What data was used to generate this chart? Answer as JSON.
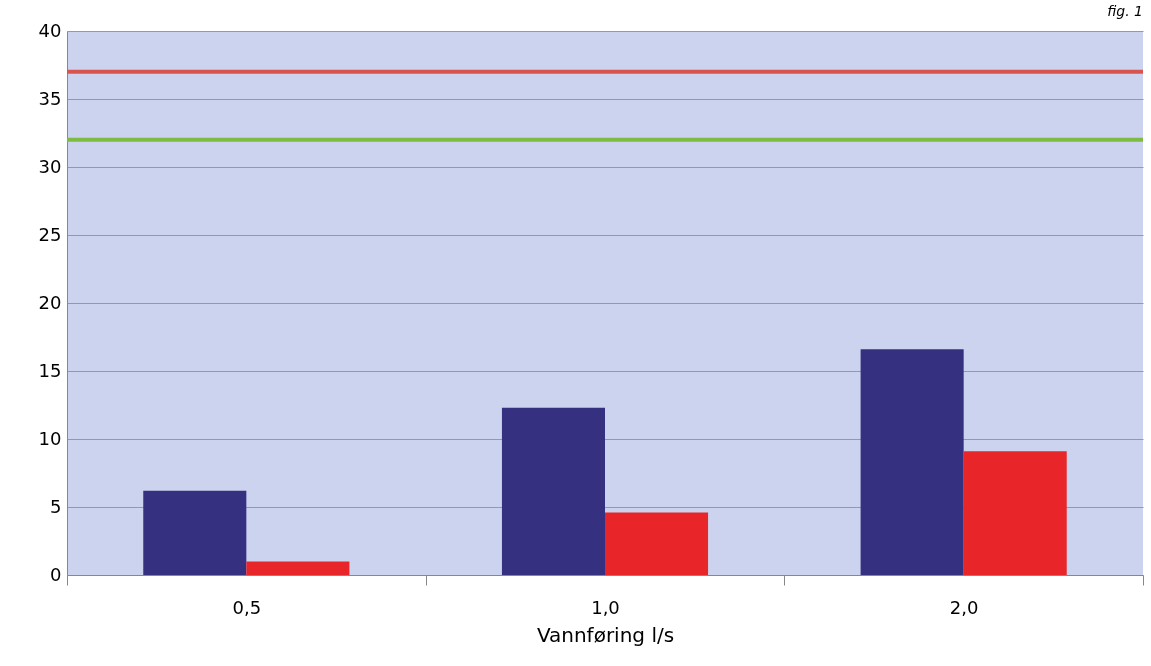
{
  "chart_data": {
    "type": "bar",
    "xlabel": "Vannføring l/s",
    "categories": [
      "0,5",
      "1,0",
      "2,0"
    ],
    "series": [
      {
        "color": "#35307f",
        "values": [
          6.2,
          12.3,
          16.6
        ]
      },
      {
        "color": "#e8262a",
        "values": [
          1.0,
          4.6,
          9.1
        ]
      }
    ],
    "ylim": [
      0,
      40
    ],
    "yticks": [
      0,
      5,
      10,
      15,
      20,
      25,
      30,
      35,
      40
    ],
    "grid": "y",
    "ref_lines": [
      {
        "axis": "y",
        "value": 37,
        "color": "#d9534f"
      },
      {
        "axis": "y",
        "value": 32,
        "color": "#7dbb42"
      }
    ],
    "annotations": [
      "fig. 1"
    ]
  }
}
